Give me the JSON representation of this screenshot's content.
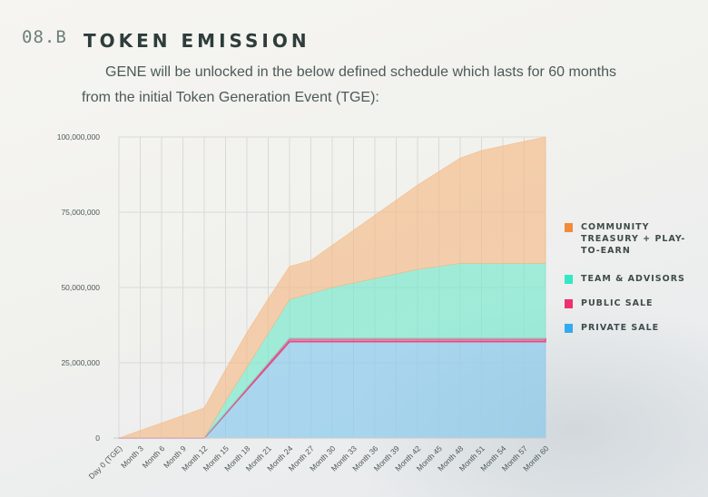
{
  "header": {
    "section_number": "08.B",
    "title": "TOKEN EMISSION",
    "intro_line1": "GENE will be unlocked in the below defined schedule which lasts for 60 months",
    "intro_line2": "from the initial Token Generation Event (TGE):"
  },
  "chart_data": {
    "type": "area",
    "stacked": true,
    "categories": [
      "Day 0 (TGE)",
      "Month 3",
      "Month 6",
      "Month 9",
      "Month 12",
      "Month 15",
      "Month 18",
      "Month 21",
      "Month 24",
      "Month 27",
      "Month 30",
      "Month 33",
      "Month 36",
      "Month 39",
      "Month 42",
      "Month 45",
      "Month 48",
      "Month 51",
      "Month 54",
      "Month 57",
      "Month 60"
    ],
    "yticks": [
      "100,000,000",
      "75,000,000",
      "50,000,000",
      "25,000,000",
      "0"
    ],
    "ylim": [
      0,
      100000000
    ],
    "grid": true,
    "legend_position": "right",
    "series": [
      {
        "name": "PRIVATE SALE",
        "color": "#7fc6ee",
        "values": [
          0,
          0,
          0,
          0,
          0,
          8000000,
          16000000,
          24000000,
          32000000,
          32000000,
          32000000,
          32000000,
          32000000,
          32000000,
          32000000,
          32000000,
          32000000,
          32000000,
          32000000,
          32000000,
          32000000
        ]
      },
      {
        "name": "PUBLIC SALE",
        "color": "#ef3d7c",
        "values": [
          0,
          0,
          0,
          0,
          0,
          250000,
          500000,
          750000,
          1000000,
          1000000,
          1000000,
          1000000,
          1000000,
          1000000,
          1000000,
          1000000,
          1000000,
          1000000,
          1000000,
          1000000,
          1000000
        ]
      },
      {
        "name": "TEAM & ADVISORS",
        "color": "#6fe8cc",
        "values": [
          0,
          0,
          0,
          0,
          0,
          4000000,
          7000000,
          10000000,
          13000000,
          15000000,
          17000000,
          18500000,
          20000000,
          21500000,
          23000000,
          24000000,
          25000000,
          25000000,
          25000000,
          25000000,
          25000000
        ]
      },
      {
        "name": "COMMUNITY TREASURY + PLAY-TO-EARN",
        "color": "#f6b883",
        "values": [
          0,
          2500000,
          5000000,
          7500000,
          10000000,
          10500000,
          11500000,
          11500000,
          11000000,
          11000000,
          14000000,
          17500000,
          21000000,
          24500000,
          28000000,
          31500000,
          35000000,
          37500000,
          39000000,
          40500000,
          42000000
        ]
      }
    ],
    "legend_order": [
      "COMMUNITY TREASURY + PLAY-TO-EARN",
      "TEAM & ADVISORS",
      "PUBLIC SALE",
      "PRIVATE SALE"
    ],
    "legend_colors": [
      "#f28a3a",
      "#33e8c4",
      "#ef2f6e",
      "#33aaf0"
    ]
  }
}
